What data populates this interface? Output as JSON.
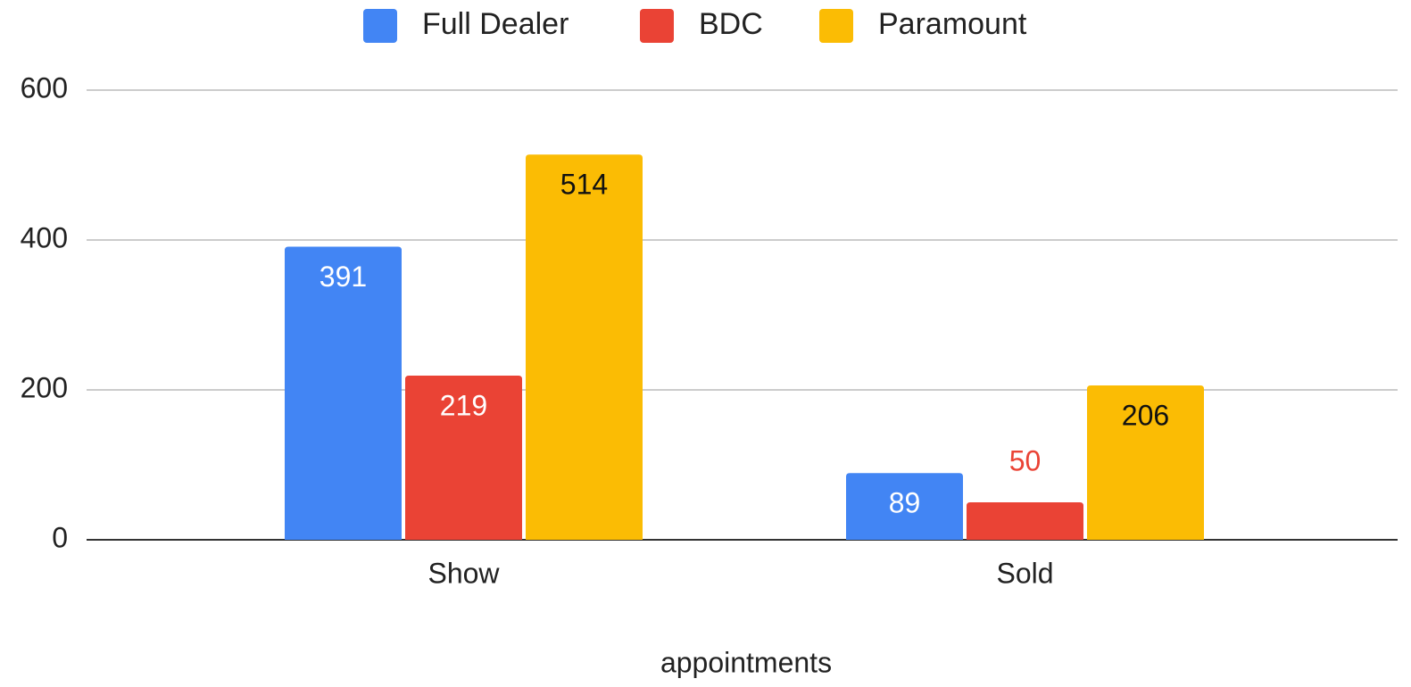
{
  "chart_data": {
    "type": "bar",
    "categories": [
      "Show",
      "Sold"
    ],
    "series": [
      {
        "name": "Full Dealer",
        "color": "#4285f4",
        "values": [
          391,
          89
        ]
      },
      {
        "name": "BDC",
        "color": "#ea4335",
        "values": [
          219,
          50
        ]
      },
      {
        "name": "Paramount",
        "color": "#fbbc04",
        "values": [
          514,
          206
        ]
      }
    ],
    "x_label": "appointments",
    "ylim": [
      0,
      600
    ],
    "yticks": [
      0,
      200,
      400,
      600
    ],
    "grid": true,
    "legend": "top"
  }
}
